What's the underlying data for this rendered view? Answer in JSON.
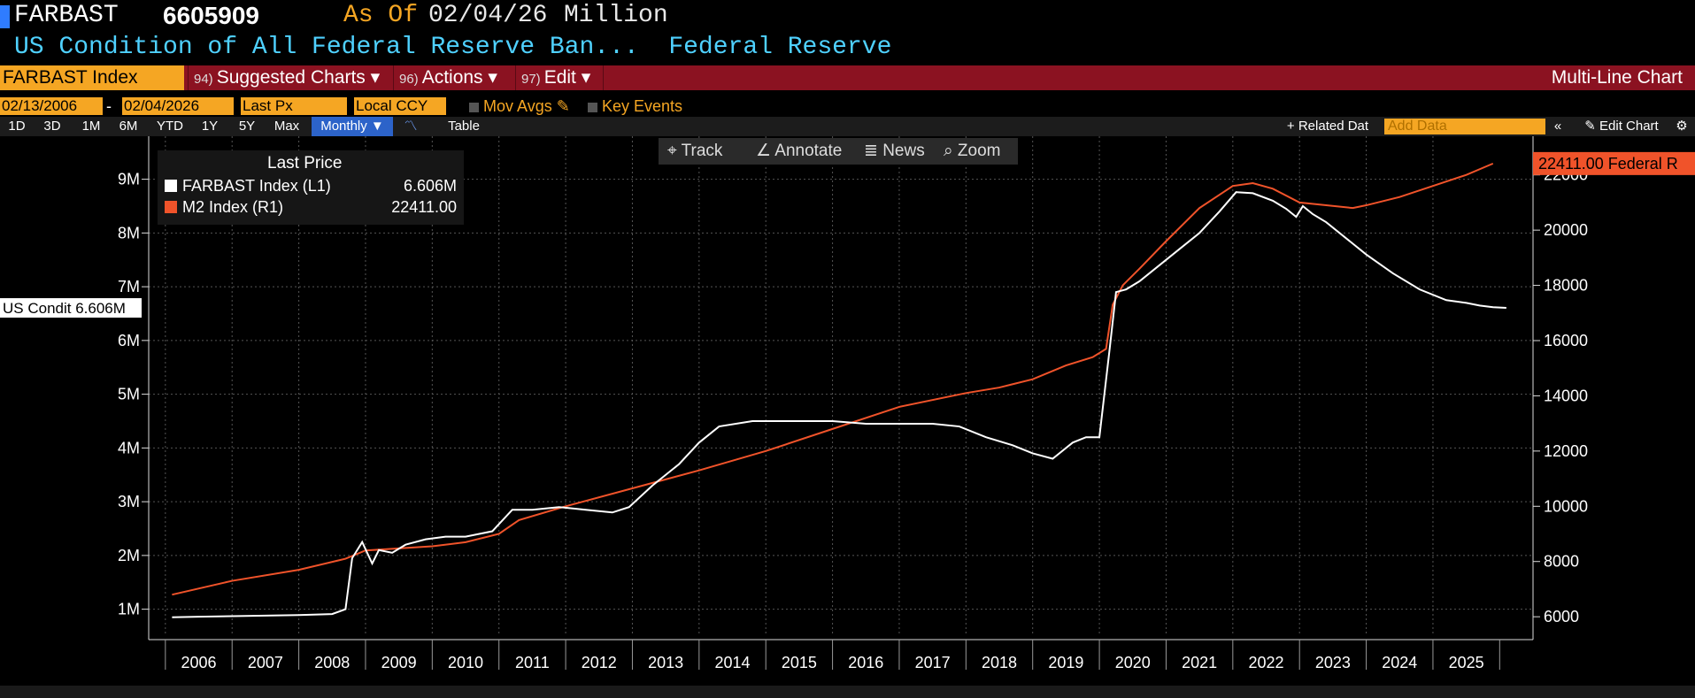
{
  "header": {
    "ticker": "FARBAST",
    "value": "6605909",
    "as_of_label": "As Of",
    "as_of_date": "02/04/26",
    "unit": "Million",
    "description": "US Condition of All Federal Reserve Ban...",
    "source": "Federal Reserve"
  },
  "toolbar": {
    "security": "FARBAST Index",
    "suggested": {
      "num": "94)",
      "label": "Suggested Charts ▾"
    },
    "actions": {
      "num": "96)",
      "label": "Actions ▾"
    },
    "edit": {
      "num": "97)",
      "label": "Edit ▾"
    },
    "chart_type": "Multi-Line Chart"
  },
  "settings": {
    "start_date": "02/13/2006",
    "dash": "-",
    "end_date": "02/04/2026",
    "field": "Last Px",
    "currency": "Local CCY",
    "mov_avgs": "Mov Avgs",
    "key_events": "Key Events"
  },
  "ranges": [
    "1D",
    "3D",
    "1M",
    "6M",
    "YTD",
    "1Y",
    "5Y",
    "Max"
  ],
  "period": "Monthly ▼",
  "table_label": "Table",
  "related_data": "+ Related Dat",
  "add_data_placeholder": "Add Data",
  "edit_chart": "✎ Edit Chart",
  "chart_tools": {
    "track": "Track",
    "annotate": "Annotate",
    "news": "News",
    "zoom": "Zoom"
  },
  "legend": {
    "title": "Last Price",
    "items": [
      {
        "label": "FARBAST Index  (L1)",
        "value": "6.606M",
        "color": "#ffffff"
      },
      {
        "label": "M2 Index  (R1)",
        "value": "22411.00",
        "color": "#f0532a"
      }
    ]
  },
  "left_tag": "US Condit 6.606M",
  "right_tag": "22411.00 Federal R",
  "colors": {
    "farbast": "#ffffff",
    "m2": "#f0532a",
    "accent": "#f5a623",
    "bar": "#8b1221"
  },
  "chart_data": {
    "type": "line",
    "x_ticks": [
      "2006",
      "2007",
      "2008",
      "2009",
      "2010",
      "2011",
      "2012",
      "2013",
      "2014",
      "2015",
      "2016",
      "2017",
      "2018",
      "2019",
      "2020",
      "2021",
      "2022",
      "2023",
      "2024",
      "2025"
    ],
    "y_left": {
      "ticks": [
        "1M",
        "2M",
        "3M",
        "4M",
        "5M",
        "6M",
        "7M",
        "8M",
        "9M"
      ],
      "range": [
        0.5,
        9.8
      ]
    },
    "y_right": {
      "ticks": [
        "6000",
        "8000",
        "10000",
        "12000",
        "14000",
        "16000",
        "18000",
        "20000",
        "22000"
      ],
      "range": [
        5300,
        23400
      ]
    },
    "grid": true,
    "legend_position": "top-left",
    "series": [
      {
        "axis": "left",
        "x": [
          2006.1,
          2006.5,
          2007.0,
          2007.5,
          2008.0,
          2008.5,
          2008.7,
          2008.8,
          2008.95,
          2009.1,
          2009.2,
          2009.4,
          2009.6,
          2009.9,
          2010.2,
          2010.5,
          2010.9,
          2011.2,
          2011.5,
          2011.9,
          2012.3,
          2012.7,
          2012.95,
          2013.3,
          2013.7,
          2014.0,
          2014.3,
          2014.8,
          2015.5,
          2016.0,
          2016.5,
          2017.0,
          2017.5,
          2017.9,
          2018.3,
          2018.7,
          2019.0,
          2019.3,
          2019.6,
          2019.8,
          2020.0,
          2020.15,
          2020.25,
          2020.4,
          2020.6,
          2020.9,
          2021.2,
          2021.5,
          2021.8,
          2022.05,
          2022.3,
          2022.6,
          2022.8,
          2022.95,
          2023.05,
          2023.2,
          2023.4,
          2023.7,
          2024.0,
          2024.4,
          2024.8,
          2025.2,
          2025.5,
          2025.7,
          2025.9,
          2026.1
        ],
        "values": [
          0.85,
          0.86,
          0.87,
          0.88,
          0.89,
          0.91,
          1.0,
          1.95,
          2.25,
          1.85,
          2.1,
          2.05,
          2.2,
          2.3,
          2.35,
          2.35,
          2.45,
          2.85,
          2.85,
          2.9,
          2.85,
          2.8,
          2.9,
          3.3,
          3.7,
          4.1,
          4.4,
          4.5,
          4.5,
          4.5,
          4.45,
          4.45,
          4.45,
          4.4,
          4.2,
          4.05,
          3.9,
          3.8,
          4.1,
          4.2,
          4.2,
          5.8,
          6.9,
          6.95,
          7.1,
          7.4,
          7.7,
          8.0,
          8.4,
          8.76,
          8.74,
          8.6,
          8.45,
          8.3,
          8.5,
          8.35,
          8.2,
          7.9,
          7.6,
          7.25,
          6.95,
          6.75,
          6.7,
          6.65,
          6.62,
          6.606
        ]
      },
      {
        "axis": "right",
        "x": [
          2006.1,
          2007.0,
          2008.0,
          2008.7,
          2009.0,
          2010.0,
          2010.5,
          2011.0,
          2011.3,
          2012.0,
          2013.0,
          2014.0,
          2015.0,
          2016.0,
          2017.0,
          2018.0,
          2018.5,
          2019.0,
          2019.5,
          2019.9,
          2020.1,
          2020.2,
          2020.35,
          2020.6,
          2021.0,
          2021.5,
          2022.0,
          2022.3,
          2022.6,
          2023.0,
          2023.4,
          2023.8,
          2024.0,
          2024.5,
          2025.0,
          2025.5,
          2025.9
        ],
        "values": [
          6800,
          7300,
          7700,
          8100,
          8400,
          8550,
          8700,
          9000,
          9500,
          10000,
          10650,
          11300,
          12000,
          12800,
          13600,
          14100,
          14300,
          14600,
          15100,
          15400,
          15700,
          17300,
          18000,
          18600,
          19600,
          20800,
          21600,
          21700,
          21500,
          21000,
          20900,
          20800,
          20900,
          21200,
          21600,
          22000,
          22411
        ]
      }
    ]
  }
}
